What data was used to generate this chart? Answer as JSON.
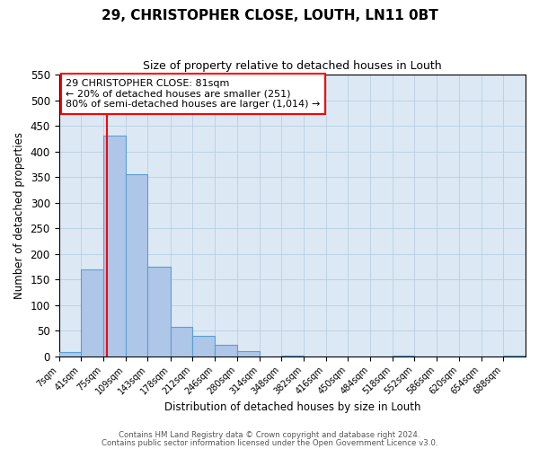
{
  "title": "29, CHRISTOPHER CLOSE, LOUTH, LN11 0BT",
  "subtitle": "Size of property relative to detached houses in Louth",
  "xlabel": "Distribution of detached houses by size in Louth",
  "ylabel": "Number of detached properties",
  "bin_labels": [
    "7sqm",
    "41sqm",
    "75sqm",
    "109sqm",
    "143sqm",
    "178sqm",
    "212sqm",
    "246sqm",
    "280sqm",
    "314sqm",
    "348sqm",
    "382sqm",
    "416sqm",
    "450sqm",
    "484sqm",
    "518sqm",
    "552sqm",
    "586sqm",
    "620sqm",
    "654sqm",
    "688sqm"
  ],
  "bin_edges": [
    7,
    41,
    75,
    109,
    143,
    178,
    212,
    246,
    280,
    314,
    348,
    382,
    416,
    450,
    484,
    518,
    552,
    586,
    620,
    654,
    688,
    722
  ],
  "bar_heights": [
    8,
    170,
    430,
    355,
    175,
    57,
    40,
    22,
    10,
    0,
    1,
    0,
    0,
    0,
    0,
    1,
    0,
    0,
    0,
    0,
    1
  ],
  "bar_color": "#aec6e8",
  "bar_edge_color": "#5a9fd4",
  "background_color": "#dce9f5",
  "grid_color": "#b8cfe0",
  "property_line_x": 81,
  "property_line_color": "red",
  "annotation_line1": "29 CHRISTOPHER CLOSE: 81sqm",
  "annotation_line2": "← 20% of detached houses are smaller (251)",
  "annotation_line3": "80% of semi-detached houses are larger (1,014) →",
  "ylim": [
    0,
    550
  ],
  "yticks": [
    0,
    50,
    100,
    150,
    200,
    250,
    300,
    350,
    400,
    450,
    500,
    550
  ],
  "footer1": "Contains HM Land Registry data © Crown copyright and database right 2024.",
  "footer2": "Contains public sector information licensed under the Open Government Licence v3.0."
}
